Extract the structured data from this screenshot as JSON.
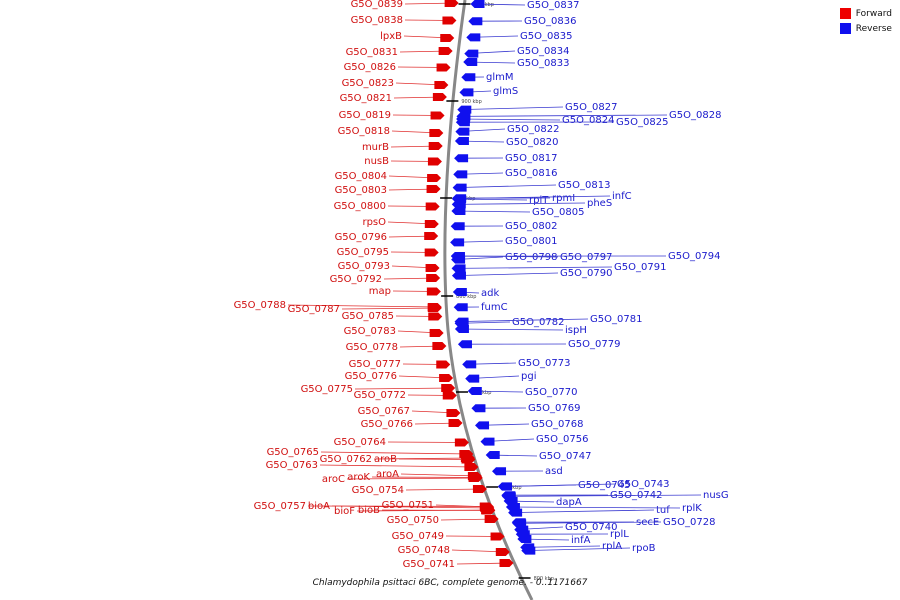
{
  "caption": "Chlamydophila psittaci 6BC, complete genome. - 0..1171667",
  "legend": [
    {
      "label": "Forward",
      "color": "#ee0000"
    },
    {
      "label": "Reverse",
      "color": "#1010ee"
    }
  ],
  "colors": {
    "forward": "#d01010",
    "reverse": "#1a1acc",
    "backbone": "#888888"
  },
  "ticks": [
    "920 kbp",
    "900 kbp",
    "880 kbp",
    "860 kbp",
    "840 kbp",
    "820 kbp",
    "800 kbp"
  ],
  "forward_labels": [
    "G5O_0839",
    "G5O_0838",
    "lpxB",
    "G5O_0831",
    "G5O_0826",
    "G5O_0823",
    "G5O_0821",
    "G5O_0819",
    "G5O_0818",
    "murB",
    "nusB",
    "G5O_0804",
    "G5O_0803",
    "G5O_0800",
    "rpsO",
    "G5O_0796",
    "G5O_0795",
    "G5O_0793",
    "G5O_0792",
    "map",
    "G5O_0788",
    "G5O_0787",
    "G5O_0785",
    "G5O_0783",
    "G5O_0778",
    "G5O_0777",
    "G5O_0776",
    "G5O_0775",
    "G5O_0772",
    "G5O_0767",
    "G5O_0766",
    "G5O_0764",
    "G5O_0765",
    "G5O_0762",
    "aroB",
    "G5O_0763",
    "aroC",
    "aroK",
    "aroA",
    "G5O_0754",
    "G5O_0757",
    "bioA",
    "bioF",
    "bioB",
    "G5O_0751",
    "G5O_0750",
    "G5O_0749",
    "G5O_0748",
    "G5O_0741"
  ],
  "reverse_labels": [
    "G5O_0837",
    "G5O_0836",
    "G5O_0835",
    "G5O_0834",
    "G5O_0833",
    "glmM",
    "glmS",
    "G5O_0827",
    "G5O_0824",
    "G5O_0825",
    "G5O_0828",
    "G5O_0822",
    "G5O_0820",
    "G5O_0817",
    "G5O_0816",
    "G5O_0813",
    "rplT",
    "rpmI",
    "pheS",
    "infC",
    "G5O_0805",
    "G5O_0802",
    "G5O_0801",
    "G5O_0798",
    "G5O_0797",
    "G5O_0794",
    "G5O_0791",
    "G5O_0790",
    "adk",
    "fumC",
    "G5O_0782",
    "G5O_0781",
    "ispH",
    "G5O_0779",
    "G5O_0773",
    "pgi",
    "G5O_0770",
    "G5O_0769",
    "G5O_0768",
    "G5O_0756",
    "G5O_0747",
    "asd",
    "G5O_0745",
    "G5O_0743",
    "dapA",
    "G5O_0742",
    "nusG",
    "tuf",
    "rplK",
    "secE",
    "G5O_0728",
    "G5O_0740",
    "infA",
    "rplL",
    "rplA",
    "rpoB"
  ]
}
